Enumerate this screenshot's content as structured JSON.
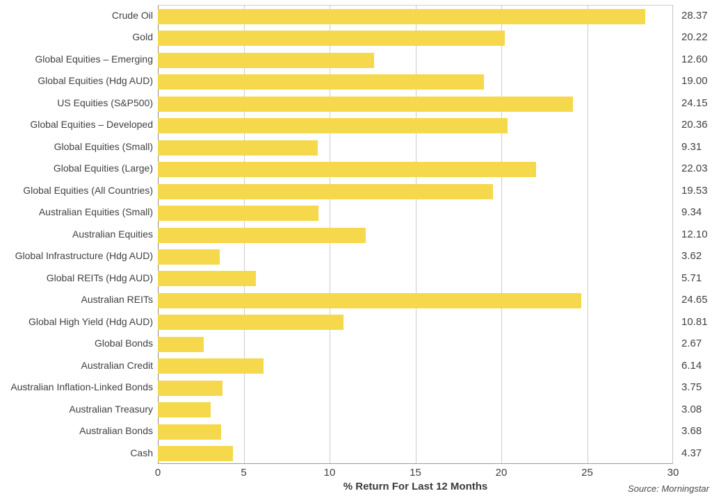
{
  "chart_data": {
    "type": "bar",
    "orientation": "horizontal",
    "title": "",
    "xlabel": "% Return For Last 12 Months",
    "ylabel": "",
    "xlim": [
      0,
      30
    ],
    "xticks": [
      0,
      5,
      10,
      15,
      20,
      25,
      30
    ],
    "grid": true,
    "legend": "none",
    "bar_color": "#F5D84C",
    "source_note": "Source: Morningstar",
    "categories": [
      "Crude Oil",
      "Gold",
      "Global Equities – Emerging",
      "Global Equities (Hdg AUD)",
      "US Equities (S&P500)",
      "Global Equities – Developed",
      "Global Equities (Small)",
      "Global Equities (Large)",
      "Global Equities (All Countries)",
      "Australian Equities (Small)",
      "Australian Equities",
      "Global Infrastructure (Hdg AUD)",
      "Global REITs (Hdg AUD)",
      "Australian REITs",
      "Global High Yield (Hdg AUD)",
      "Global Bonds",
      "Australian Credit",
      "Australian Inflation-Linked Bonds",
      "Australian Treasury",
      "Australian Bonds",
      "Cash"
    ],
    "values": [
      28.37,
      20.22,
      12.6,
      19.0,
      24.15,
      20.36,
      9.31,
      22.03,
      19.53,
      9.34,
      12.1,
      3.62,
      5.71,
      24.65,
      10.81,
      2.67,
      6.14,
      3.75,
      3.08,
      3.68,
      4.37
    ],
    "value_labels": [
      "28.37",
      "20.22",
      "12.60",
      "19.00",
      "24.15",
      "20.36",
      "9.31",
      "22.03",
      "19.53",
      "9.34",
      "12.10",
      "3.62",
      "5.71",
      "24.65",
      "10.81",
      "2.67",
      "6.14",
      "3.75",
      "3.08",
      "3.68",
      "4.37"
    ]
  }
}
